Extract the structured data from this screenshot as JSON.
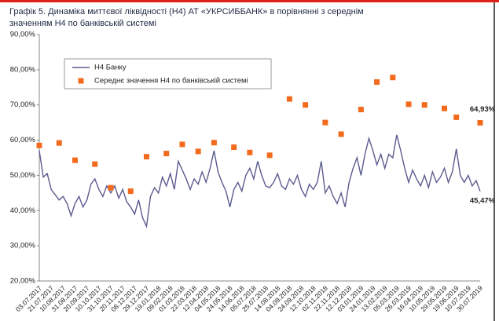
{
  "chart_data": {
    "type": "line",
    "title_lines": [
      "Графік 5. Динаміка миттєвої ліквідності (Н4) АТ «УКРСИББАНК» в порівнянні з середнім",
      "значенням Н4 по банківській системі"
    ],
    "categories": [
      "03.07.2017",
      null,
      null,
      "21.07.2017",
      null,
      null,
      "10.08.2017",
      null,
      null,
      "31.08.2017",
      null,
      null,
      "20.09.2017",
      null,
      null,
      "10.10.2017",
      null,
      null,
      "31.10.2017",
      null,
      null,
      "20.11.2017",
      null,
      null,
      "08.12.2017",
      null,
      null,
      "29.12.2017",
      null,
      null,
      "19.01.2018",
      null,
      null,
      "09.02.2018",
      null,
      null,
      "01.03.2018",
      null,
      null,
      "22.03.2018",
      null,
      null,
      "12.04.2018",
      null,
      null,
      "04.05.2018",
      null,
      null,
      "24.05.2018",
      null,
      null,
      "14.06.2018",
      null,
      null,
      "05.07.2018",
      null,
      null,
      "25.07.2018",
      null,
      null,
      "14.08.2018",
      null,
      null,
      "04.09.2018",
      null,
      null,
      "24.09.2018",
      null,
      null,
      "12.10.2018",
      null,
      null,
      "02.11.2018",
      null,
      null,
      "22.11.2018",
      null,
      null,
      "12.12.2018",
      null,
      null,
      "03.01.2019",
      null,
      null,
      "24.01.2019",
      null,
      null,
      "13.02.2019",
      null,
      null,
      "05.03.2019",
      null,
      null,
      "26.03.2019",
      null,
      null,
      "16.04.2019",
      null,
      null,
      "10.05.2019",
      null,
      null,
      "29.05.2019",
      null,
      null,
      "19.06.2019",
      null,
      null,
      "10.07.2019",
      null,
      null,
      "30.07.2019"
    ],
    "series": [
      {
        "name": "Н4 Банку",
        "color": "#5b5b8f",
        "style": "line",
        "values": [
          57,
          49.5,
          50.5,
          46,
          44.5,
          43,
          44,
          42,
          38.5,
          42,
          44,
          41,
          43,
          47.5,
          49,
          46,
          44,
          47,
          45,
          47,
          43.5,
          46,
          42.5,
          41,
          39,
          43,
          38,
          35.5,
          44,
          46.5,
          45,
          49.5,
          47,
          50.5,
          46,
          54,
          51.5,
          49,
          46,
          49,
          47.5,
          51,
          48,
          52,
          57,
          51,
          48,
          45.5,
          41,
          46,
          48,
          45.5,
          50,
          52,
          49,
          54,
          50,
          47,
          46.5,
          48,
          50.5,
          47,
          46,
          49,
          47.5,
          50,
          46,
          44,
          47.5,
          46,
          48,
          54,
          45,
          47,
          44,
          42,
          45,
          41,
          48,
          52,
          55,
          50,
          56,
          60.5,
          57,
          53,
          56,
          52,
          56,
          55,
          61.5,
          57,
          52,
          48,
          51.5,
          49,
          47,
          50,
          46.5,
          51,
          48,
          49.5,
          52,
          48,
          51,
          57.5,
          50,
          48,
          50,
          47,
          48.5,
          45.47
        ],
        "value_labels": [
          null,
          null,
          null,
          null,
          null,
          null,
          null,
          null,
          null,
          null,
          null,
          null,
          null,
          null,
          null,
          null,
          null,
          null,
          null,
          null,
          null,
          null,
          null,
          null,
          null,
          null,
          null,
          null,
          null,
          null,
          null,
          null,
          null,
          null,
          null,
          null,
          null,
          null,
          null,
          null,
          null,
          null,
          null,
          null,
          null,
          null,
          null,
          null,
          null,
          null,
          null,
          null,
          null,
          null,
          null,
          null,
          null,
          null,
          null,
          null,
          null,
          null,
          null,
          null,
          null,
          null,
          null,
          null,
          null,
          null,
          null,
          null,
          null,
          null,
          null,
          null,
          null,
          null,
          null,
          null,
          null,
          null,
          null,
          null,
          null,
          null,
          null,
          null,
          null,
          null,
          null,
          null,
          null,
          null,
          null,
          null,
          null,
          null,
          null,
          null,
          null,
          null,
          null,
          null,
          null,
          null,
          null,
          null,
          null,
          null,
          null,
          "45,47%"
        ]
      },
      {
        "name": "Середнє значення Н4 по банківській системі",
        "color": "#f26b1d",
        "style": "marker",
        "values": [
          58.5,
          null,
          null,
          null,
          null,
          59.2,
          null,
          null,
          null,
          54.3,
          null,
          null,
          null,
          null,
          53.2,
          null,
          null,
          null,
          46.5,
          null,
          null,
          null,
          null,
          45.5,
          null,
          null,
          null,
          55.3,
          null,
          null,
          null,
          null,
          56.2,
          null,
          null,
          null,
          58.8,
          null,
          null,
          null,
          56.8,
          null,
          null,
          null,
          59.3,
          null,
          null,
          null,
          null,
          58,
          null,
          null,
          null,
          56.5,
          null,
          null,
          null,
          null,
          55.7,
          null,
          null,
          null,
          null,
          71.7,
          null,
          null,
          null,
          70,
          null,
          null,
          null,
          null,
          65,
          null,
          null,
          null,
          61.7,
          null,
          null,
          null,
          null,
          68.7,
          null,
          null,
          null,
          76.5,
          null,
          null,
          null,
          77.8,
          null,
          null,
          null,
          70.2,
          null,
          null,
          null,
          70,
          null,
          null,
          null,
          null,
          69,
          null,
          null,
          66.5,
          null,
          null,
          null,
          null,
          null,
          64.93
        ],
        "value_labels": [
          null,
          null,
          null,
          null,
          null,
          null,
          null,
          null,
          null,
          null,
          null,
          null,
          null,
          null,
          null,
          null,
          null,
          null,
          null,
          null,
          null,
          null,
          null,
          null,
          null,
          null,
          null,
          null,
          null,
          null,
          null,
          null,
          null,
          null,
          null,
          null,
          null,
          null,
          null,
          null,
          null,
          null,
          null,
          null,
          null,
          null,
          null,
          null,
          null,
          null,
          null,
          null,
          null,
          null,
          null,
          null,
          null,
          null,
          null,
          null,
          null,
          null,
          null,
          null,
          null,
          null,
          null,
          null,
          null,
          null,
          null,
          null,
          null,
          null,
          null,
          null,
          null,
          null,
          null,
          null,
          null,
          null,
          null,
          null,
          null,
          null,
          null,
          null,
          null,
          null,
          null,
          null,
          null,
          null,
          null,
          null,
          null,
          null,
          null,
          null,
          null,
          null,
          null,
          null,
          null,
          null,
          null,
          null,
          null,
          null,
          null,
          "64,93%"
        ]
      }
    ],
    "ylim": [
      20,
      90
    ],
    "yticks": [
      {
        "value": 20,
        "label": "20,00%"
      },
      {
        "value": 30,
        "label": "30,00%"
      },
      {
        "value": 40,
        "label": "40,00%"
      },
      {
        "value": 50,
        "label": "50,00%"
      },
      {
        "value": 60,
        "label": "60,00%"
      },
      {
        "value": 70,
        "label": "70,00%"
      },
      {
        "value": 80,
        "label": "80,00%"
      },
      {
        "value": 90,
        "label": "90,00%"
      }
    ],
    "grid": false,
    "legend": "upper left"
  }
}
